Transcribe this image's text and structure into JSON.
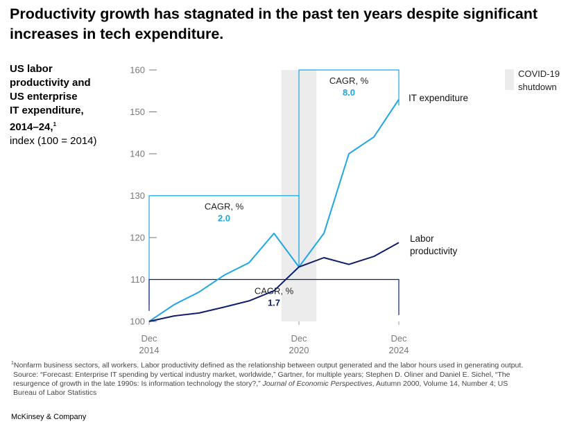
{
  "title": "Productivity growth has stagnated in the past ten years despite significant increases in tech expenditure.",
  "side_label": {
    "bold_lines": [
      "US labor",
      "productivity and",
      "US enterprise",
      "IT expenditure,",
      "2014–24,"
    ],
    "sup": "1",
    "unit": "index (100 = 2014)"
  },
  "chart_data": {
    "type": "line",
    "x": [
      2014,
      2015,
      2016,
      2017,
      2018,
      2019,
      2020,
      2021,
      2022,
      2023,
      2024
    ],
    "xlim": [
      2014,
      2024
    ],
    "ylim": [
      100,
      160
    ],
    "yticks": [
      "100",
      "110",
      "120",
      "130",
      "140",
      "150",
      "160"
    ],
    "xticks": [
      {
        "month": "Dec",
        "year": "2014"
      },
      {
        "month": "Dec",
        "year": "2020"
      },
      {
        "month": "Dec",
        "year": "2024"
      }
    ],
    "series": [
      {
        "name": "IT expenditure",
        "color": "#1ea7e1",
        "values": [
          100,
          104,
          107,
          111,
          114,
          121,
          113,
          121,
          140,
          144,
          153
        ]
      },
      {
        "name": "Labor productivity",
        "color": "#0d1d6b",
        "values": [
          100,
          101.3,
          102,
          103.4,
          104.9,
          107.3,
          113,
          115.2,
          113.6,
          115.5,
          118.8
        ]
      }
    ],
    "series_labels": {
      "it": "IT expenditure",
      "labor_1": "Labor",
      "labor_2": "productivity"
    },
    "covid_band": {
      "x0": 2019.3,
      "x1": 2020.7,
      "label_1": "COVID-19",
      "label_2": "shutdown"
    },
    "annotations": [
      {
        "label": "CAGR, %",
        "value": "2.0",
        "from": 2014,
        "to": 2020,
        "level": 130,
        "color": "#1ea7e1"
      },
      {
        "label": "CAGR, %",
        "value": "8.0",
        "from": 2020,
        "to": 2024,
        "level": 160,
        "color": "#1ea7e1"
      },
      {
        "label": "CAGR, %",
        "value": "1.7",
        "from": 2014,
        "to": 2024,
        "level": 110,
        "color": "#0d1d6b"
      }
    ]
  },
  "footnote": {
    "sup": "1",
    "line1": "Nonfarm business sectors, all workers. Labor productivity defined as the relationship between output generated and the labor hours used in generating output.",
    "line2": "Source: “Forecast: Enterprise IT spending by vertical industry market, worldwide,” Gartner, for multiple years; Stephen D. Oliner and Daniel E. Sichel, “The",
    "line3a": "resurgence of growth in the late 1990s: Is information technology the story?,” ",
    "line3_journal": "Journal of Economic Perspectives",
    "line3b": ", Autumn 2000, Volume 14, Number 4; US",
    "line4": "Bureau of Labor Statistics"
  },
  "brand": "McKinsey & Company"
}
